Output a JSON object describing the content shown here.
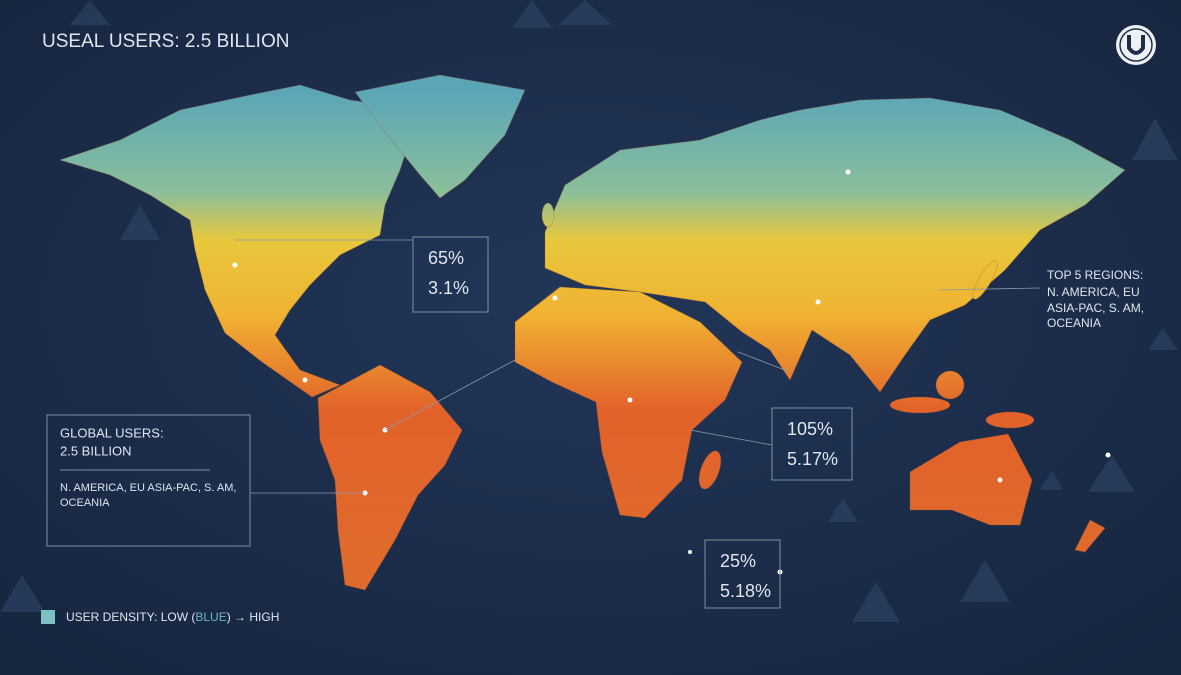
{
  "header": {
    "title": "USEAL USERS: 2.5 BILLION"
  },
  "callouts": [
    {
      "lines": [
        "65%",
        "3.1%"
      ]
    },
    {
      "lines": [
        "105%",
        "5.17%"
      ]
    },
    {
      "lines": [
        "25%",
        "5.18%"
      ]
    }
  ],
  "top_regions": {
    "lines": [
      "TOP 5 REGIONS:",
      "N. AMERICA, EU",
      "ASIA-PAC, S. AM,",
      "OCEANIA"
    ]
  },
  "global_panel": {
    "title": "GLOBAL USERS:",
    "value": "2.5 BILLION",
    "regions": [
      "N. AMERICA, EU ASIA-PAC, S. AM,",
      "OCEANIA"
    ]
  },
  "legend": {
    "parts": [
      "USER DENSITY: LOW (",
      "BLUE",
      ") → HIGH"
    ]
  }
}
